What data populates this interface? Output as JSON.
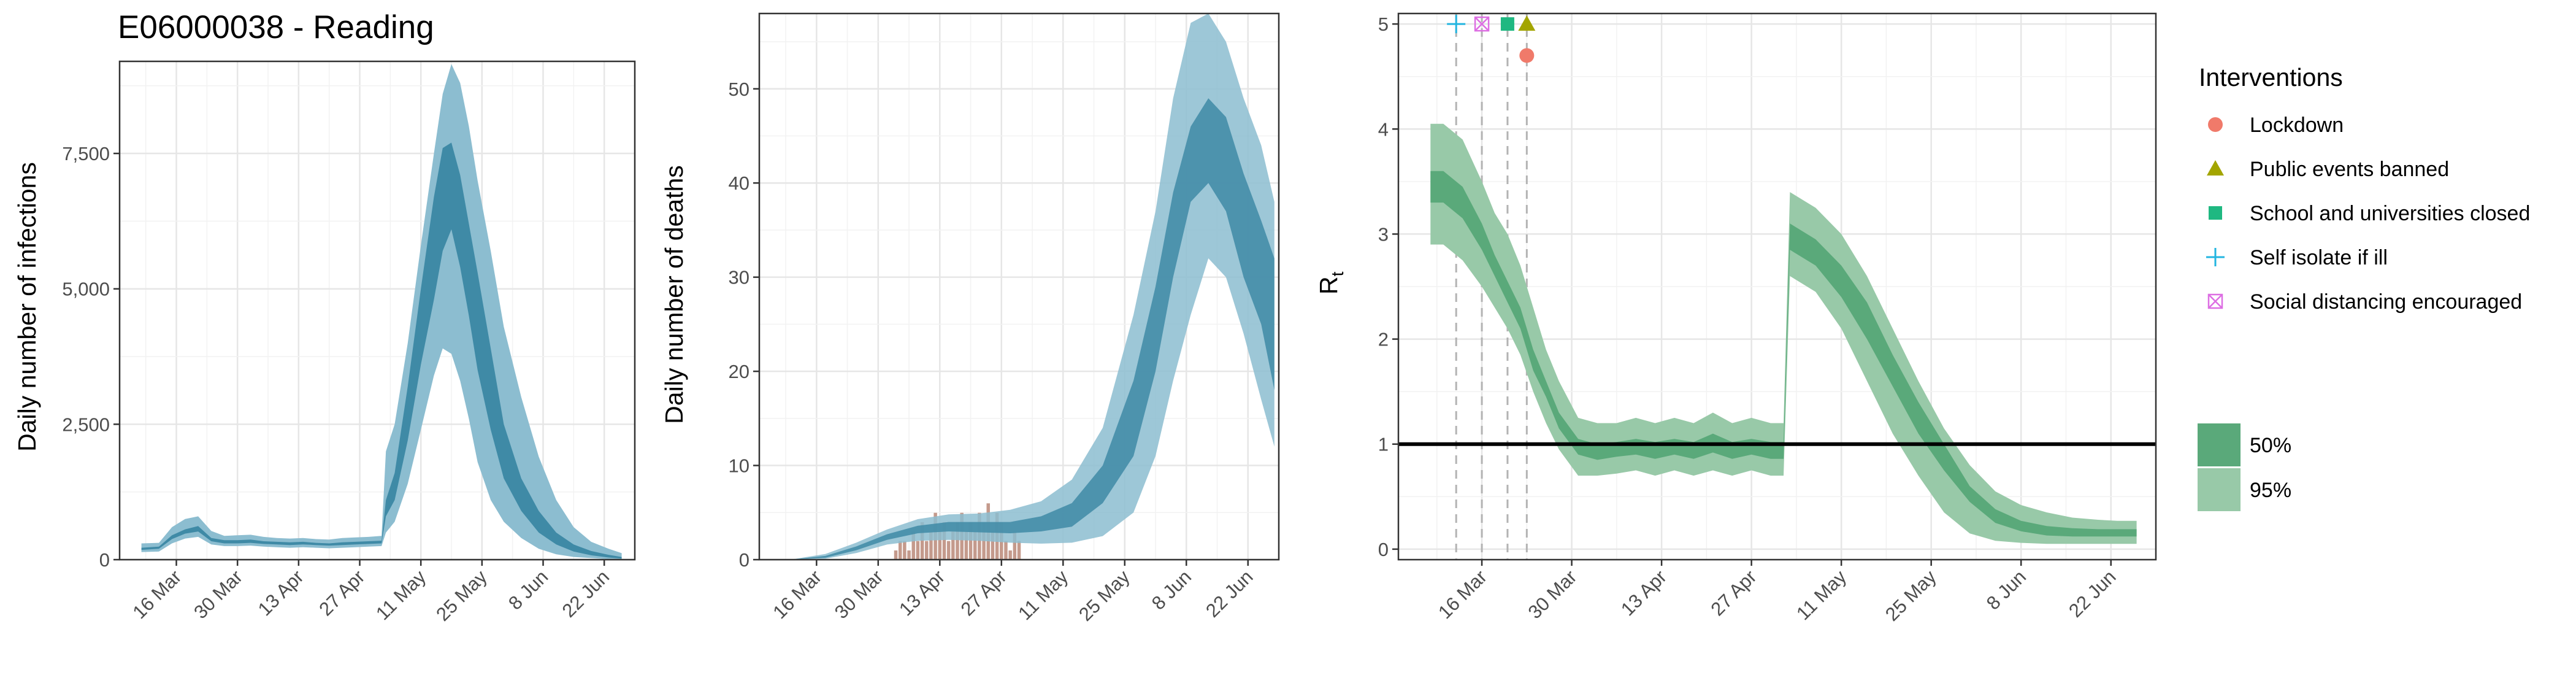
{
  "chart_data": [
    {
      "type": "area",
      "title": "E06000038 - Reading",
      "ylabel": "Daily number of infections",
      "xlabel": "",
      "x_ticks": [
        "16 Mar",
        "30 Mar",
        "13 Apr",
        "27 Apr",
        "11 May",
        "25 May",
        "8 Jun",
        "22 Jun"
      ],
      "y_ticks": [
        "0",
        "2,500",
        "5,000",
        "7,500"
      ],
      "xlim": [
        "2020-03-03",
        "2020-06-29"
      ],
      "ylim": [
        0,
        9200
      ],
      "grid": true,
      "colors": {
        "band95": "#8cbdd0",
        "band50": "#3f8aa6",
        "line": "#3f8aa6"
      },
      "series": [
        {
          "x": [
            "2020-03-08",
            "2020-03-12",
            "2020-03-15",
            "2020-03-18",
            "2020-03-21",
            "2020-03-24",
            "2020-03-27",
            "2020-03-30",
            "2020-04-02",
            "2020-04-05",
            "2020-04-08",
            "2020-04-11",
            "2020-04-14",
            "2020-04-17",
            "2020-04-20",
            "2020-04-23",
            "2020-04-26",
            "2020-04-29",
            "2020-05-02",
            "2020-05-03",
            "2020-05-05",
            "2020-05-08",
            "2020-05-11",
            "2020-05-14",
            "2020-05-16",
            "2020-05-18",
            "2020-05-20",
            "2020-05-22",
            "2020-05-24",
            "2020-05-27",
            "2020-05-30",
            "2020-06-03",
            "2020-06-07",
            "2020-06-11",
            "2020-06-15",
            "2020-06-19",
            "2020-06-23",
            "2020-06-26"
          ],
          "q975": [
            300,
            310,
            600,
            750,
            800,
            530,
            440,
            450,
            460,
            420,
            400,
            390,
            400,
            380,
            370,
            400,
            410,
            420,
            440,
            2000,
            2500,
            4000,
            5800,
            7500,
            8600,
            9150,
            8800,
            8000,
            7000,
            5700,
            4300,
            3000,
            1900,
            1100,
            600,
            330,
            200,
            120
          ],
          "q75": [
            220,
            240,
            450,
            560,
            620,
            400,
            360,
            360,
            370,
            340,
            330,
            320,
            330,
            310,
            300,
            320,
            330,
            340,
            350,
            1100,
            1600,
            3200,
            5000,
            6700,
            7600,
            7700,
            7100,
            6200,
            5300,
            3900,
            2500,
            1500,
            900,
            500,
            280,
            160,
            90,
            50
          ],
          "q25": [
            180,
            200,
            380,
            480,
            520,
            340,
            300,
            300,
            310,
            290,
            280,
            270,
            280,
            270,
            260,
            270,
            280,
            290,
            300,
            800,
            1100,
            2200,
            3600,
            4800,
            5700,
            6100,
            5400,
            4500,
            3500,
            2400,
            1500,
            900,
            500,
            280,
            150,
            80,
            40,
            20
          ],
          "q025": [
            140,
            150,
            300,
            390,
            420,
            280,
            250,
            250,
            260,
            240,
            230,
            220,
            230,
            220,
            210,
            220,
            230,
            240,
            250,
            500,
            700,
            1400,
            2400,
            3400,
            3900,
            3800,
            3300,
            2600,
            1800,
            1100,
            700,
            400,
            200,
            100,
            50,
            30,
            10,
            5
          ]
        }
      ]
    },
    {
      "type": "area",
      "title": "",
      "ylabel": "Daily number of deaths",
      "xlabel": "",
      "x_ticks": [
        "16 Mar",
        "30 Mar",
        "13 Apr",
        "27 Apr",
        "11 May",
        "25 May",
        "8 Jun",
        "22 Jun"
      ],
      "y_ticks": [
        "0",
        "10",
        "20",
        "30",
        "40",
        "50"
      ],
      "xlim": [
        "2020-03-03",
        "2020-06-29"
      ],
      "ylim": [
        0,
        58
      ],
      "grid": true,
      "colors": {
        "band95": "#8cbdd0",
        "band50": "#3f8aa6",
        "bars": "#c49a8c"
      },
      "series": [
        {
          "x": [
            "2020-03-10",
            "2020-03-18",
            "2020-03-25",
            "2020-04-01",
            "2020-04-08",
            "2020-04-15",
            "2020-04-22",
            "2020-04-29",
            "2020-05-06",
            "2020-05-13",
            "2020-05-20",
            "2020-05-27",
            "2020-06-01",
            "2020-06-05",
            "2020-06-09",
            "2020-06-13",
            "2020-06-17",
            "2020-06-21",
            "2020-06-25",
            "2020-06-28"
          ],
          "q975": [
            0,
            0.6,
            1.8,
            3.2,
            4.3,
            4.8,
            4.9,
            5.3,
            6.2,
            8.5,
            14,
            26,
            37,
            49,
            57,
            58,
            55,
            49,
            44,
            38
          ],
          "q75": [
            0,
            0.4,
            1.4,
            2.7,
            3.6,
            4.0,
            4.0,
            4.0,
            4.6,
            6.0,
            10,
            19,
            29,
            39,
            46,
            49,
            47,
            41,
            36,
            32
          ],
          "q25": [
            0,
            0.2,
            1.0,
            2.1,
            2.8,
            3.0,
            2.9,
            2.8,
            3.0,
            3.5,
            6,
            11,
            20,
            30,
            38,
            40,
            37,
            30,
            25,
            18
          ],
          "q025": [
            0,
            0.1,
            0.7,
            1.6,
            2.0,
            2.1,
            2.0,
            1.8,
            1.7,
            1.8,
            2.5,
            5,
            11,
            19,
            26,
            32,
            30,
            24,
            17,
            12
          ]
        }
      ],
      "observed_deaths": {
        "x": [
          "2020-04-03",
          "2020-04-04",
          "2020-04-05",
          "2020-04-06",
          "2020-04-07",
          "2020-04-08",
          "2020-04-09",
          "2020-04-10",
          "2020-04-11",
          "2020-04-12",
          "2020-04-13",
          "2020-04-14",
          "2020-04-15",
          "2020-04-16",
          "2020-04-17",
          "2020-04-18",
          "2020-04-19",
          "2020-04-20",
          "2020-04-21",
          "2020-04-22",
          "2020-04-23",
          "2020-04-24",
          "2020-04-25",
          "2020-04-26",
          "2020-04-27",
          "2020-04-28",
          "2020-04-29",
          "2020-04-30",
          "2020-05-01"
        ],
        "values": [
          1,
          2,
          2,
          1,
          3,
          2,
          4,
          2,
          3,
          5,
          3,
          4,
          2,
          3,
          4,
          5,
          3,
          4,
          3,
          5,
          4,
          6,
          3,
          5,
          4,
          2,
          1,
          3,
          2
        ]
      }
    },
    {
      "type": "area",
      "title": "",
      "ylabel": "R",
      "ylabel_subscript": "t",
      "xlabel": "",
      "x_ticks": [
        "16 Mar",
        "30 Mar",
        "13 Apr",
        "27 Apr",
        "11 May",
        "25 May",
        "8 Jun",
        "22 Jun"
      ],
      "y_ticks": [
        "0",
        "1",
        "2",
        "3",
        "4",
        "5"
      ],
      "xlim": [
        "2020-03-03",
        "2020-06-29"
      ],
      "ylim": [
        -0.1,
        5.1
      ],
      "grid": true,
      "reference_line": 1,
      "colors": {
        "band95": "#98c9a8",
        "band50": "#5aa97a",
        "refline": "#000000"
      },
      "series": [
        {
          "x": [
            "2020-03-08",
            "2020-03-10",
            "2020-03-13",
            "2020-03-16",
            "2020-03-18",
            "2020-03-20",
            "2020-03-22",
            "2020-03-24",
            "2020-03-26",
            "2020-03-28",
            "2020-03-31",
            "2020-04-03",
            "2020-04-06",
            "2020-04-09",
            "2020-04-12",
            "2020-04-15",
            "2020-04-18",
            "2020-04-21",
            "2020-04-24",
            "2020-04-27",
            "2020-04-30",
            "2020-05-02",
            "2020-05-03",
            "2020-05-07",
            "2020-05-11",
            "2020-05-15",
            "2020-05-19",
            "2020-05-23",
            "2020-05-27",
            "2020-05-31",
            "2020-06-04",
            "2020-06-08",
            "2020-06-12",
            "2020-06-16",
            "2020-06-20",
            "2020-06-23",
            "2020-06-26"
          ],
          "q975": [
            4.05,
            4.05,
            3.9,
            3.5,
            3.2,
            3.0,
            2.7,
            2.3,
            1.9,
            1.6,
            1.25,
            1.2,
            1.2,
            1.25,
            1.2,
            1.25,
            1.2,
            1.3,
            1.2,
            1.25,
            1.2,
            1.2,
            3.4,
            3.25,
            3.0,
            2.6,
            2.1,
            1.6,
            1.15,
            0.8,
            0.55,
            0.42,
            0.35,
            0.3,
            0.28,
            0.27,
            0.27
          ],
          "q75": [
            3.6,
            3.6,
            3.45,
            3.1,
            2.8,
            2.55,
            2.3,
            1.9,
            1.6,
            1.3,
            1.05,
            1.0,
            1.02,
            1.05,
            1.02,
            1.05,
            1.02,
            1.1,
            1.02,
            1.05,
            1.02,
            1.02,
            3.1,
            2.95,
            2.7,
            2.35,
            1.85,
            1.4,
            1.0,
            0.6,
            0.38,
            0.27,
            0.22,
            0.2,
            0.19,
            0.19,
            0.19
          ],
          "q25": [
            3.3,
            3.3,
            3.15,
            2.85,
            2.6,
            2.35,
            2.1,
            1.7,
            1.45,
            1.15,
            0.9,
            0.85,
            0.88,
            0.9,
            0.86,
            0.9,
            0.86,
            0.92,
            0.86,
            0.9,
            0.86,
            0.86,
            2.85,
            2.7,
            2.4,
            2.0,
            1.55,
            1.1,
            0.75,
            0.45,
            0.25,
            0.17,
            0.13,
            0.12,
            0.12,
            0.12,
            0.12
          ],
          "q025": [
            2.9,
            2.9,
            2.75,
            2.5,
            2.3,
            2.1,
            1.85,
            1.5,
            1.2,
            0.95,
            0.7,
            0.7,
            0.72,
            0.75,
            0.7,
            0.75,
            0.7,
            0.75,
            0.7,
            0.75,
            0.7,
            0.7,
            2.6,
            2.45,
            2.1,
            1.6,
            1.1,
            0.7,
            0.35,
            0.15,
            0.08,
            0.06,
            0.05,
            0.05,
            0.05,
            0.05,
            0.05
          ]
        }
      ],
      "interventions": [
        {
          "name": "Lockdown",
          "date": "2020-03-23",
          "y": 4.7,
          "color": "#f07a6a",
          "shape": "circle"
        },
        {
          "name": "Public events banned",
          "date": "2020-03-23",
          "y": 5.0,
          "color": "#a3a500",
          "shape": "triangle"
        },
        {
          "name": "School and universities closed",
          "date": "2020-03-20",
          "y": 5.0,
          "color": "#1fb881",
          "shape": "square"
        },
        {
          "name": "Self isolate if ill",
          "date": "2020-03-12",
          "y": 5.0,
          "color": "#23b5e0",
          "shape": "plus"
        },
        {
          "name": "Social distancing encouraged",
          "date": "2020-03-16",
          "y": 5.0,
          "color": "#dd6ee3",
          "shape": "boxx"
        }
      ]
    }
  ],
  "legend_interventions": {
    "title": "Interventions",
    "items": [
      {
        "label": "Lockdown",
        "shape": "circle",
        "color": "#f07a6a"
      },
      {
        "label": "Public events banned",
        "shape": "triangle",
        "color": "#a3a500"
      },
      {
        "label": "School and universities closed",
        "shape": "square",
        "color": "#1fb881"
      },
      {
        "label": "Self isolate if ill",
        "shape": "plus",
        "color": "#23b5e0"
      },
      {
        "label": "Social distancing encouraged",
        "shape": "boxx",
        "color": "#dd6ee3"
      }
    ]
  },
  "legend_bands": {
    "placement": "right",
    "items": [
      {
        "label": "50%",
        "color": "#5aa97a"
      },
      {
        "label": "95%",
        "color": "#98c9a8"
      }
    ]
  }
}
